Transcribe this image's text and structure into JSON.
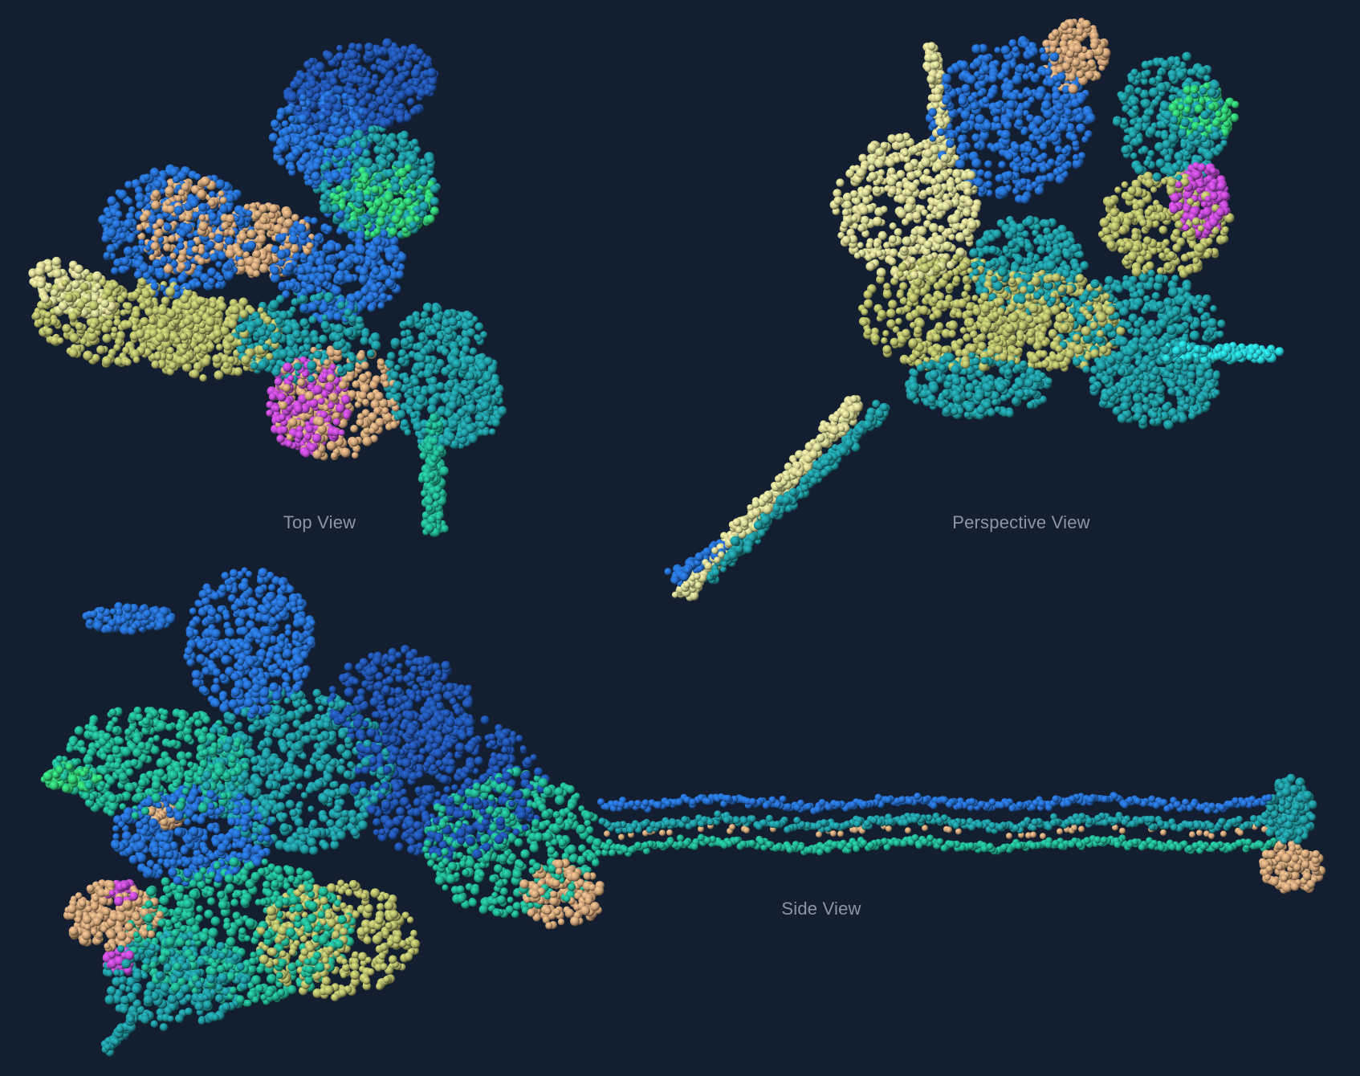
{
  "views": {
    "top": {
      "label": "Top View"
    },
    "perspective": {
      "label": "Perspective View"
    },
    "side": {
      "label": "Side View"
    }
  },
  "colors": {
    "background": "#131f31",
    "label_text": "#8c95a3",
    "palette": {
      "deep_blue": "#1f4fa3",
      "blue": "#2468c2",
      "teal": "#1e8f96",
      "sea_green": "#20a788",
      "green": "#2fbf6e",
      "cyan": "#26c1c9",
      "olive": "#a9ad63",
      "khaki": "#c9c88a",
      "tan": "#c39a72",
      "magenta": "#b446c8"
    }
  }
}
